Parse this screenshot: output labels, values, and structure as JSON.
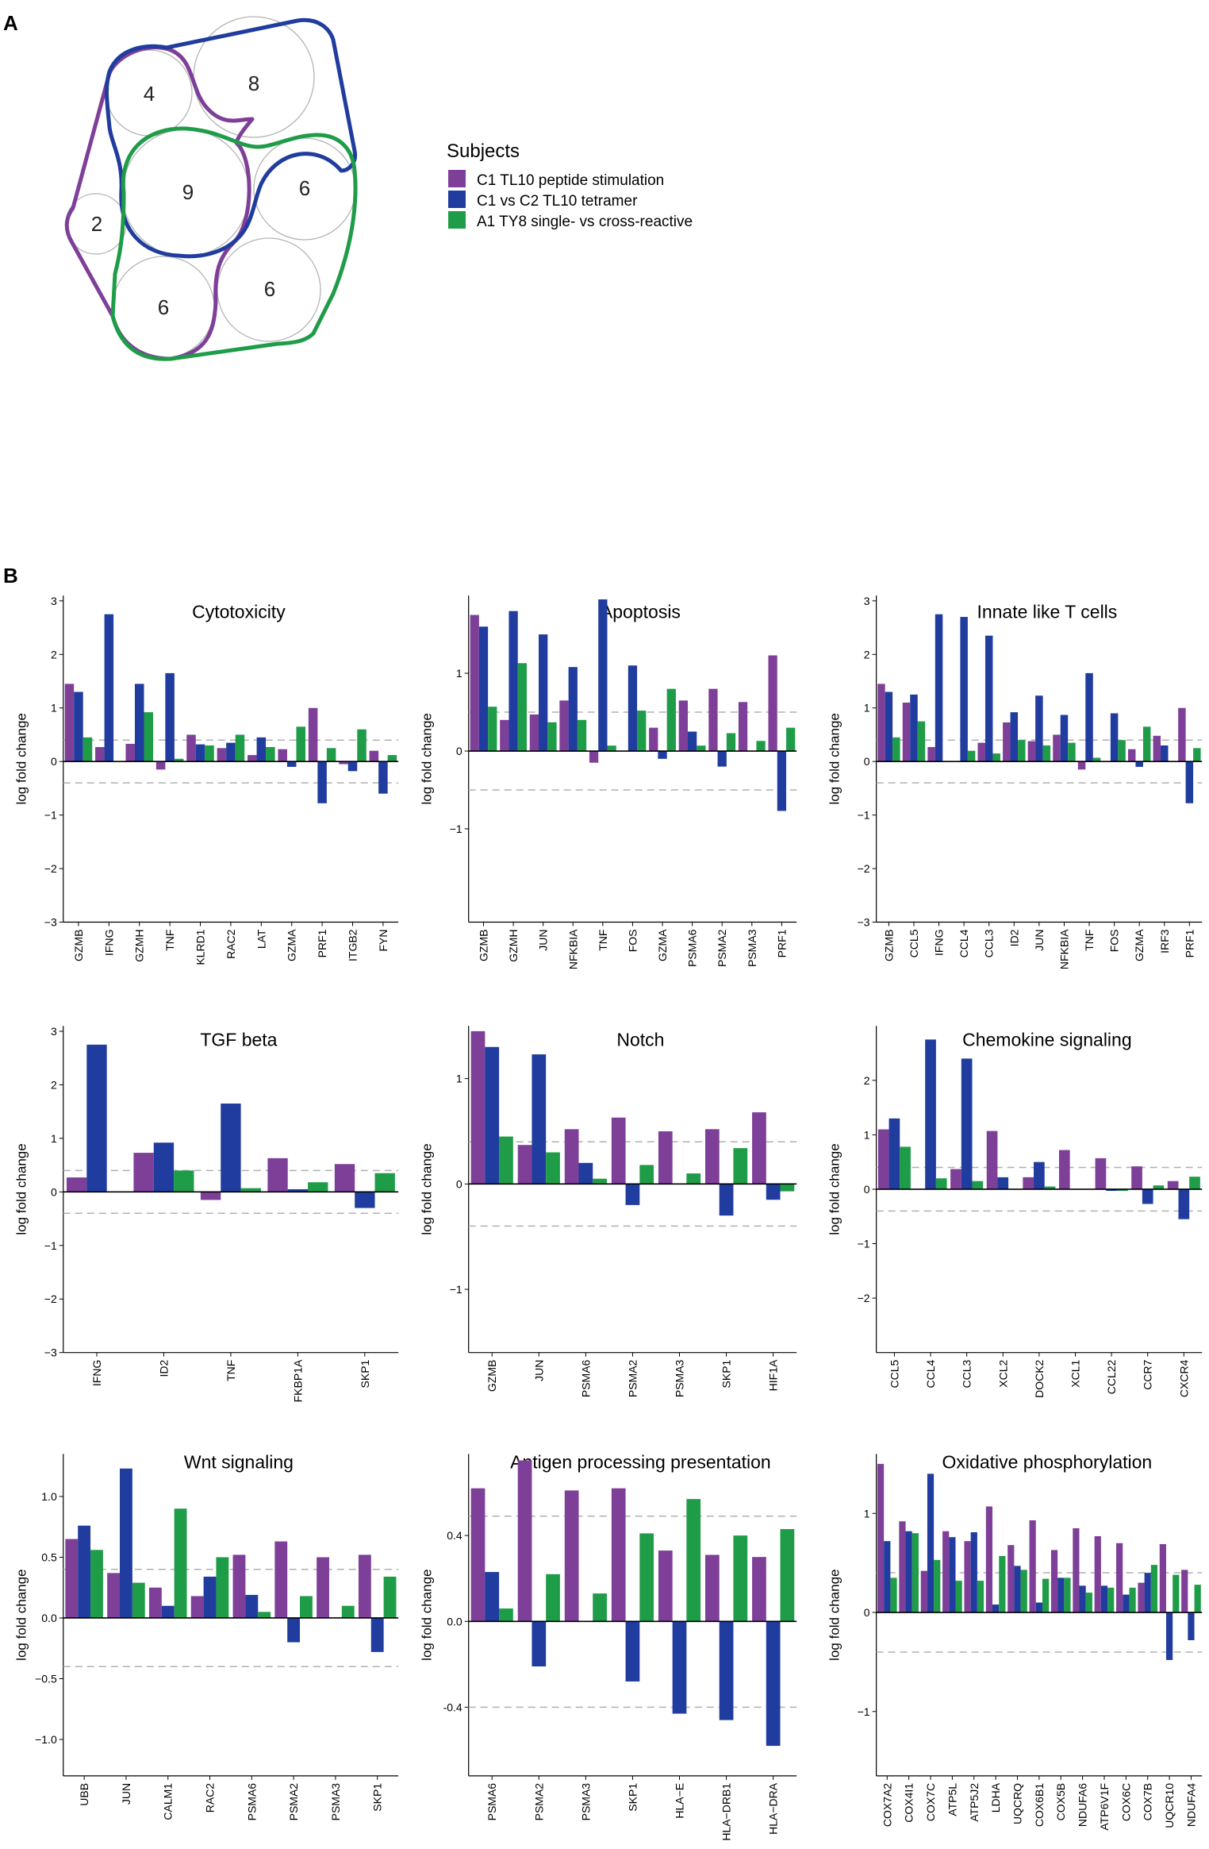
{
  "panels": {
    "a": "A",
    "b": "B"
  },
  "colors": {
    "C1": "#7E3F98",
    "C2": "#1F3C9E",
    "A1": "#1F9C48"
  },
  "venn": {
    "legend_title": "Subjects",
    "legend": [
      {
        "key": "C1",
        "label": "C1 TL10 peptide stimulation"
      },
      {
        "key": "C2",
        "label": "C1 vs C2 TL10 tetramer"
      },
      {
        "key": "A1",
        "label": "A1 TY8 single- vs cross-reactive"
      }
    ],
    "counts": [
      "4",
      "8",
      "2",
      "9",
      "6",
      "6",
      "6"
    ]
  },
  "y_axis_label": "log fold change",
  "chart_data": [
    {
      "type": "bar",
      "title": "Cytotoxicity",
      "categories": [
        "GZMB",
        "IFNG",
        "GZMH",
        "TNF",
        "KLRD1",
        "RAC2",
        "LAT",
        "GZMA",
        "PRF1",
        "ITGB2",
        "FYN"
      ],
      "series": [
        {
          "name": "C1 TL10 peptide stimulation",
          "key": "C1",
          "values": [
            1.45,
            0.27,
            0.33,
            -0.15,
            0.5,
            0.25,
            0.12,
            0.23,
            1.0,
            -0.05,
            0.2
          ]
        },
        {
          "name": "C1 vs C2 TL10 tetramer",
          "key": "C2",
          "values": [
            1.3,
            2.75,
            1.45,
            1.65,
            0.32,
            0.35,
            0.45,
            -0.1,
            -0.78,
            -0.18,
            -0.6
          ]
        },
        {
          "name": "A1 TY8 single- vs cross-reactive",
          "key": "A1",
          "values": [
            0.45,
            0,
            0.92,
            0.05,
            0.3,
            0.5,
            0.27,
            0.65,
            0.25,
            0.6,
            0.12
          ]
        }
      ],
      "ylim": [
        -3,
        3.1
      ],
      "yticks": [
        -3,
        -2,
        -1,
        0,
        1,
        2,
        3
      ],
      "ytick_labels": [
        "−3",
        "−2",
        "−1",
        "0",
        "1",
        "2",
        "3"
      ],
      "thresholds": [
        0.4,
        -0.4
      ],
      "xlabel": "",
      "ylabel": "log fold change"
    },
    {
      "type": "bar",
      "title": "Apoptosis",
      "categories": [
        "GZMB",
        "GZMH",
        "JUN",
        "NFKBIA",
        "TNF",
        "FOS",
        "GZMA",
        "PSMA6",
        "PSMA2",
        "PSMA3",
        "PRF1"
      ],
      "series": [
        {
          "name": "C1 TL10 peptide stimulation",
          "key": "C1",
          "values": [
            1.75,
            0.4,
            0.47,
            0.65,
            -0.15,
            0,
            0.3,
            0.65,
            0.8,
            0.63,
            1.23
          ]
        },
        {
          "name": "C1 vs C2 TL10 tetramer",
          "key": "C2",
          "values": [
            1.6,
            1.8,
            1.5,
            1.08,
            1.95,
            1.1,
            -0.1,
            0.25,
            -0.2,
            0,
            -0.77
          ]
        },
        {
          "name": "A1 TY8 single- vs cross-reactive",
          "key": "A1",
          "values": [
            0.57,
            1.13,
            0.37,
            0.4,
            0.07,
            0.52,
            0.8,
            0.07,
            0.23,
            0.13,
            0.3
          ]
        }
      ],
      "ylim": [
        -2.2,
        2.0
      ],
      "yticks": [
        -1,
        0,
        1
      ],
      "ytick_labels": [
        "−1",
        "0",
        "1"
      ],
      "thresholds": [
        0.5,
        -0.5
      ],
      "xlabel": "",
      "ylabel": "log fold change"
    },
    {
      "type": "bar",
      "title": "Innate like T cells",
      "categories": [
        "GZMB",
        "CCL5",
        "IFNG",
        "CCL4",
        "CCL3",
        "ID2",
        "JUN",
        "NFKBIA",
        "TNF",
        "FOS",
        "GZMA",
        "IRF3",
        "PRF1"
      ],
      "series": [
        {
          "name": "C1 TL10 peptide stimulation",
          "key": "C1",
          "values": [
            1.45,
            1.1,
            0.27,
            0,
            0.35,
            0.73,
            0.38,
            0.5,
            -0.15,
            0,
            0.23,
            0.48,
            1.0
          ]
        },
        {
          "name": "C1 vs C2 TL10 tetramer",
          "key": "C2",
          "values": [
            1.3,
            1.25,
            2.75,
            2.7,
            2.35,
            0.92,
            1.23,
            0.87,
            1.65,
            0.9,
            -0.1,
            0.3,
            -0.78
          ]
        },
        {
          "name": "A1 TY8 single- vs cross-reactive",
          "key": "A1",
          "values": [
            0.45,
            0.75,
            0,
            0.2,
            0.15,
            0.4,
            0.3,
            0.35,
            0.07,
            0.4,
            0.65,
            0,
            0.25
          ]
        }
      ],
      "ylim": [
        -3,
        3.1
      ],
      "yticks": [
        -3,
        -2,
        -1,
        0,
        1,
        2,
        3
      ],
      "ytick_labels": [
        "−3",
        "−2",
        "−1",
        "0",
        "1",
        "2",
        "3"
      ],
      "thresholds": [
        0.4,
        -0.4
      ],
      "xlabel": "",
      "ylabel": "log fold change"
    },
    {
      "type": "bar",
      "title": "TGF beta",
      "categories": [
        "IFNG",
        "ID2",
        "TNF",
        "FKBP1A",
        "SKP1"
      ],
      "series": [
        {
          "name": "C1 TL10 peptide stimulation",
          "key": "C1",
          "values": [
            0.27,
            0.73,
            -0.15,
            0.63,
            0.52
          ]
        },
        {
          "name": "C1 vs C2 TL10 tetramer",
          "key": "C2",
          "values": [
            2.75,
            0.92,
            1.65,
            0.05,
            -0.3
          ]
        },
        {
          "name": "A1 TY8 single- vs cross-reactive",
          "key": "A1",
          "values": [
            0,
            0.4,
            0.07,
            0.18,
            0.35
          ]
        }
      ],
      "ylim": [
        -3,
        3.1
      ],
      "yticks": [
        -3,
        -2,
        -1,
        0,
        1,
        2,
        3
      ],
      "ytick_labels": [
        "−3",
        "−2",
        "−1",
        "0",
        "1",
        "2",
        "3"
      ],
      "thresholds": [
        0.4,
        -0.4
      ],
      "xlabel": "",
      "ylabel": "log fold change"
    },
    {
      "type": "bar",
      "title": "Notch",
      "categories": [
        "GZMB",
        "JUN",
        "PSMA6",
        "PSMA2",
        "PSMA3",
        "SKP1",
        "HIF1A"
      ],
      "series": [
        {
          "name": "C1 TL10 peptide stimulation",
          "key": "C1",
          "values": [
            1.45,
            0.37,
            0.52,
            0.63,
            0.5,
            0.52,
            0.68
          ]
        },
        {
          "name": "C1 vs C2 TL10 tetramer",
          "key": "C2",
          "values": [
            1.3,
            1.23,
            0.2,
            -0.2,
            0,
            -0.3,
            -0.15
          ]
        },
        {
          "name": "A1 TY8 single- vs cross-reactive",
          "key": "A1",
          "values": [
            0.45,
            0.3,
            0.05,
            0.18,
            0.1,
            0.34,
            -0.07
          ]
        }
      ],
      "ylim": [
        -1.6,
        1.5
      ],
      "yticks": [
        -1,
        0,
        1
      ],
      "ytick_labels": [
        "−1",
        "0",
        "1"
      ],
      "thresholds": [
        0.4,
        -0.4
      ],
      "xlabel": "",
      "ylabel": "log fold change"
    },
    {
      "type": "bar",
      "title": "Chemokine signaling",
      "categories": [
        "CCL5",
        "CCL4",
        "CCL3",
        "XCL2",
        "DOCK2",
        "XCL1",
        "CCL22",
        "CCR7",
        "CXCR4"
      ],
      "series": [
        {
          "name": "C1 TL10 peptide stimulation",
          "key": "C1",
          "values": [
            1.1,
            0,
            0.37,
            1.07,
            0.22,
            0.72,
            0.57,
            0.42,
            0.15
          ]
        },
        {
          "name": "C1 vs C2 TL10 tetramer",
          "key": "C2",
          "values": [
            1.3,
            2.75,
            2.4,
            0.22,
            0.5,
            0,
            -0.03,
            -0.27,
            -0.55
          ]
        },
        {
          "name": "A1 TY8 single- vs cross-reactive",
          "key": "A1",
          "values": [
            0.78,
            0.2,
            0.15,
            0,
            0.05,
            0,
            -0.03,
            0.07,
            0.23
          ]
        }
      ],
      "ylim": [
        -3.0,
        3.0
      ],
      "yticks": [
        -2,
        -1,
        0,
        1,
        2
      ],
      "ytick_labels": [
        "−2",
        "−1",
        "0",
        "1",
        "2"
      ],
      "thresholds": [
        0.4,
        -0.4
      ],
      "xlabel": "",
      "ylabel": "log fold change"
    },
    {
      "type": "bar",
      "title": "Wnt signaling",
      "categories": [
        "UBB",
        "JUN",
        "CALM1",
        "RAC2",
        "PSMA6",
        "PSMA2",
        "PSMA3",
        "SKP1"
      ],
      "series": [
        {
          "name": "C1 TL10 peptide stimulation",
          "key": "C1",
          "values": [
            0.65,
            0.37,
            0.25,
            0.18,
            0.52,
            0.63,
            0.5,
            0.52
          ]
        },
        {
          "name": "C1 vs C2 TL10 tetramer",
          "key": "C2",
          "values": [
            0.76,
            1.23,
            0.1,
            0.34,
            0.19,
            -0.2,
            0,
            -0.28
          ]
        },
        {
          "name": "A1 TY8 single- vs cross-reactive",
          "key": "A1",
          "values": [
            0.56,
            0.29,
            0.9,
            0.5,
            0.05,
            0.18,
            0.1,
            0.34
          ]
        }
      ],
      "ylim": [
        -1.3,
        1.35
      ],
      "yticks": [
        -1.0,
        -0.5,
        0.0,
        0.5,
        1.0
      ],
      "ytick_labels": [
        "−1.0",
        "−0.5",
        "0.0",
        "0.5",
        "1.0"
      ],
      "thresholds": [
        0.4,
        -0.4
      ],
      "xlabel": "",
      "ylabel": "log fold change"
    },
    {
      "type": "bar",
      "title": "Antigen processing presentation",
      "categories": [
        "PSMA6",
        "PSMA2",
        "PSMA3",
        "SKP1",
        "HLA−E",
        "HLA−DRB1",
        "HLA−DRA"
      ],
      "series": [
        {
          "name": "C1 TL10 peptide stimulation",
          "key": "C1",
          "values": [
            0.62,
            0.75,
            0.61,
            0.62,
            0.33,
            0.31,
            0.3
          ]
        },
        {
          "name": "C1 vs C2 TL10 tetramer",
          "key": "C2",
          "values": [
            0.23,
            -0.21,
            0,
            -0.28,
            -0.43,
            -0.46,
            -0.58
          ]
        },
        {
          "name": "A1 TY8 single- vs cross-reactive",
          "key": "A1",
          "values": [
            0.06,
            0.22,
            0.13,
            0.41,
            0.57,
            0.4,
            0.43
          ]
        }
      ],
      "ylim": [
        -0.72,
        0.78
      ],
      "yticks": [
        -0.4,
        0.0,
        0.4
      ],
      "ytick_labels": [
        "-0.4",
        "0.0",
        "0.4"
      ],
      "thresholds": [
        0.49,
        -0.4
      ],
      "xlabel": "",
      "ylabel": "log fold change"
    },
    {
      "type": "bar",
      "title": "Oxidative phosphorylation",
      "categories": [
        "COX7A2",
        "COX4I1",
        "COX7C",
        "ATP5L",
        "ATP5J2",
        "LDHA",
        "UQCRQ",
        "COX6B1",
        "COX5B",
        "NDUFA6",
        "ATP6V1F",
        "COX6C",
        "COX7B",
        "UQCR10",
        "NDUFA4"
      ],
      "series": [
        {
          "name": "C1 TL10 peptide stimulation",
          "key": "C1",
          "values": [
            1.5,
            0.92,
            0.42,
            0.82,
            0.72,
            1.07,
            0.68,
            0.93,
            0.63,
            0.85,
            0.77,
            0.7,
            0.3,
            0.69,
            0.43
          ]
        },
        {
          "name": "C1 vs C2 TL10 tetramer",
          "key": "C2",
          "values": [
            0.72,
            0.82,
            1.4,
            0.76,
            0.81,
            0.08,
            0.47,
            0.1,
            0.35,
            0.27,
            0.27,
            0.18,
            0.4,
            -0.48,
            -0.28
          ]
        },
        {
          "name": "A1 TY8 single- vs cross-reactive",
          "key": "A1",
          "values": [
            0.35,
            0.8,
            0.53,
            0.32,
            0.32,
            0.57,
            0.43,
            0.34,
            0.35,
            0.2,
            0.25,
            0.25,
            0.48,
            0.38,
            0.28
          ]
        }
      ],
      "ylim": [
        -1.65,
        1.6
      ],
      "yticks": [
        -1,
        0,
        1
      ],
      "ytick_labels": [
        "−1",
        "0",
        "1"
      ],
      "thresholds": [
        0.4,
        -0.4
      ],
      "xlabel": "",
      "ylabel": "log fold change"
    }
  ]
}
